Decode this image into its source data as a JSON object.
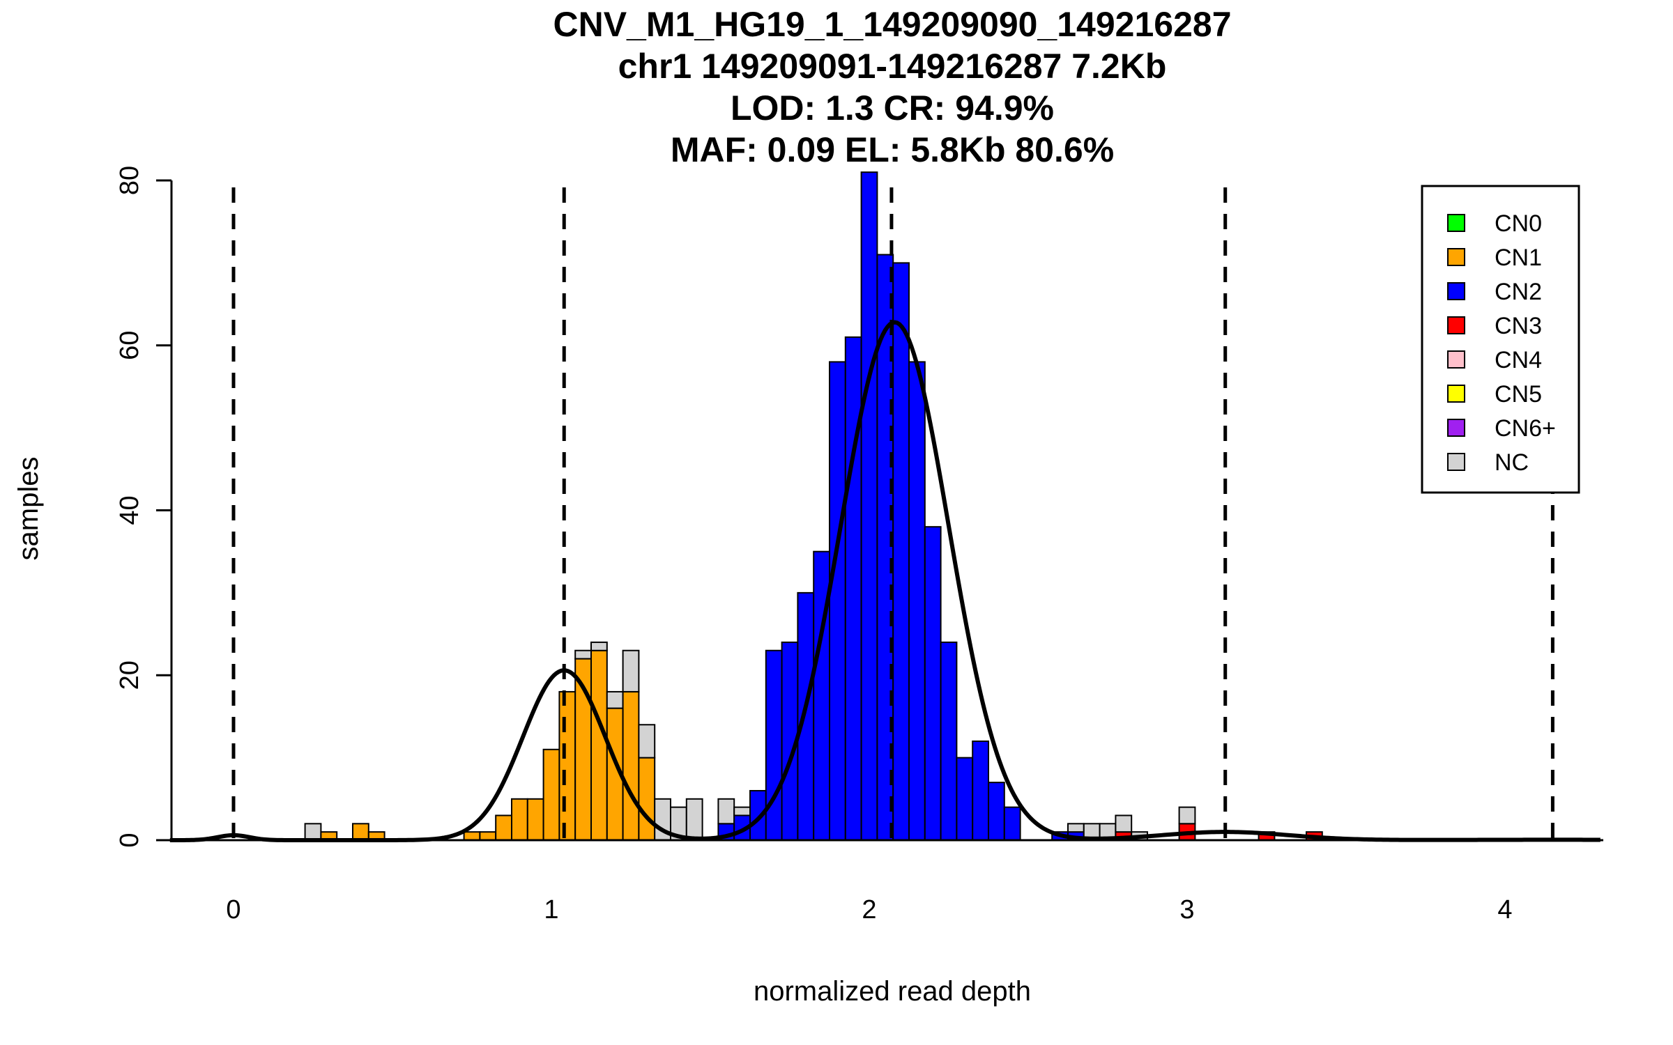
{
  "chart_data": {
    "type": "bar",
    "subtype": "stacked-histogram-with-density-curves",
    "title_lines": [
      "CNV_M1_HG19_1_149209090_149216287",
      "chr1 149209091-149216287 7.2Kb",
      "LOD: 1.3 CR: 94.9%",
      "MAF: 0.09 EL: 5.8Kb 80.6%"
    ],
    "xlabel": "normalized read depth",
    "ylabel": "samples",
    "xlim": [
      -0.2,
      4.3
    ],
    "ylim": [
      0,
      80
    ],
    "x_ticks": [
      "0",
      "1",
      "2",
      "3",
      "4"
    ],
    "y_ticks": [
      "0",
      "20",
      "40",
      "60",
      "80"
    ],
    "bin_width": 0.05,
    "colors": {
      "CN0": "#00ff00",
      "CN1": "#ffa500",
      "CN2": "#0000ff",
      "CN3": "#ff0000",
      "CN4": "#ffc0cb",
      "CN5": "#ffff00",
      "CN6+": "#a020f0",
      "NC": "#d3d3d3"
    },
    "legend": {
      "position": "top-right",
      "entries": [
        "CN0",
        "CN1",
        "CN2",
        "CN3",
        "CN4",
        "CN5",
        "CN6+",
        "NC"
      ]
    },
    "bins": [
      {
        "x": 0.25,
        "NC": 2
      },
      {
        "x": 0.3,
        "CN1": 1
      },
      {
        "x": 0.4,
        "CN1": 2
      },
      {
        "x": 0.45,
        "CN1": 1
      },
      {
        "x": 0.75,
        "CN1": 1
      },
      {
        "x": 0.8,
        "CN1": 1
      },
      {
        "x": 0.85,
        "CN1": 3
      },
      {
        "x": 0.9,
        "CN1": 5
      },
      {
        "x": 0.95,
        "CN1": 5
      },
      {
        "x": 1.0,
        "CN1": 11
      },
      {
        "x": 1.05,
        "CN1": 18
      },
      {
        "x": 1.1,
        "CN1": 22,
        "NC": 1
      },
      {
        "x": 1.15,
        "CN1": 23,
        "NC": 1
      },
      {
        "x": 1.2,
        "CN1": 16,
        "NC": 2
      },
      {
        "x": 1.25,
        "CN1": 18,
        "NC": 5
      },
      {
        "x": 1.3,
        "CN1": 10,
        "NC": 4
      },
      {
        "x": 1.35,
        "NC": 5
      },
      {
        "x": 1.4,
        "NC": 4
      },
      {
        "x": 1.45,
        "NC": 5
      },
      {
        "x": 1.55,
        "CN2": 2,
        "NC": 3
      },
      {
        "x": 1.6,
        "CN2": 3,
        "NC": 1
      },
      {
        "x": 1.65,
        "CN2": 6
      },
      {
        "x": 1.7,
        "CN2": 23
      },
      {
        "x": 1.75,
        "CN2": 24
      },
      {
        "x": 1.8,
        "CN2": 30
      },
      {
        "x": 1.85,
        "CN2": 35
      },
      {
        "x": 1.9,
        "CN2": 58
      },
      {
        "x": 1.95,
        "CN2": 61
      },
      {
        "x": 2.0,
        "CN2": 81
      },
      {
        "x": 2.05,
        "CN2": 71
      },
      {
        "x": 2.1,
        "CN2": 70
      },
      {
        "x": 2.15,
        "CN2": 58
      },
      {
        "x": 2.2,
        "CN2": 38
      },
      {
        "x": 2.25,
        "CN2": 24
      },
      {
        "x": 2.3,
        "CN2": 10
      },
      {
        "x": 2.35,
        "CN2": 12
      },
      {
        "x": 2.4,
        "CN2": 7
      },
      {
        "x": 2.45,
        "CN2": 4
      },
      {
        "x": 2.6,
        "CN2": 1
      },
      {
        "x": 2.65,
        "CN2": 1,
        "NC": 1
      },
      {
        "x": 2.7,
        "NC": 2
      },
      {
        "x": 2.75,
        "NC": 2
      },
      {
        "x": 2.8,
        "CN3": 1,
        "NC": 2
      },
      {
        "x": 2.85,
        "NC": 1
      },
      {
        "x": 3.0,
        "CN3": 2,
        "NC": 2
      },
      {
        "x": 3.25,
        "CN3": 1
      },
      {
        "x": 3.4,
        "CN3": 1
      }
    ],
    "dashed_vlines": [
      0.0,
      1.04,
      2.07,
      3.12,
      4.15
    ],
    "density_curves": [
      {
        "name": "CN0",
        "mean": 0.0,
        "sd": 0.05,
        "peak": 0.6
      },
      {
        "name": "CN1",
        "mean": 1.04,
        "sd": 0.13,
        "peak": 20.6
      },
      {
        "name": "CN2",
        "mean": 2.08,
        "sd": 0.17,
        "peak": 62.8
      },
      {
        "name": "CN3",
        "mean": 3.12,
        "sd": 0.2,
        "peak": 1.0
      },
      {
        "name": "CN4",
        "mean": 4.15,
        "sd": 0.3,
        "peak": 0.05
      }
    ]
  }
}
